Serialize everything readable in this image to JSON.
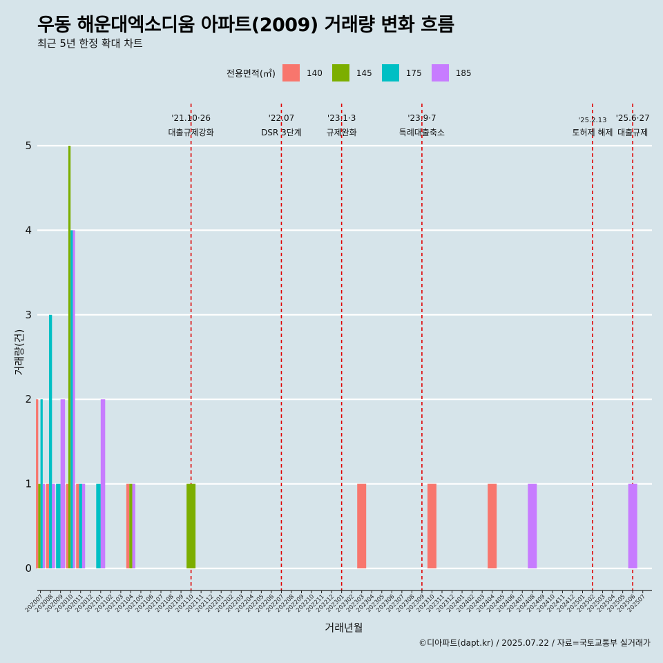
{
  "header": {
    "title": "우동 해운대엑소디움 아파트(2009) 거래량 변화 흐름",
    "subtitle": "최근 5년 한정 확대 차트"
  },
  "legend": {
    "title": "전용면적(㎡)",
    "items": [
      {
        "label": "140",
        "color": "#F8766D"
      },
      {
        "label": "145",
        "color": "#7CAE00"
      },
      {
        "label": "175",
        "color": "#00BFC4"
      },
      {
        "label": "185",
        "color": "#C77CFF"
      }
    ]
  },
  "caption": "©디아파트(dapt.kr) / 2025.07.22 / 자료=국토교통부 실거래가",
  "chart_data": {
    "type": "bar",
    "xlabel": "거래년월",
    "ylabel": "거래량(건)",
    "ylim": [
      0,
      5
    ],
    "y_ticks": [
      0,
      1,
      2,
      3,
      4,
      5
    ],
    "grid": "horizontal",
    "legend_position": "top",
    "categories": [
      "202007",
      "202008",
      "202009",
      "202010",
      "202011",
      "202012",
      "202101",
      "202102",
      "202103",
      "202104",
      "202105",
      "202106",
      "202107",
      "202108",
      "202109",
      "202110",
      "202111",
      "202112",
      "202201",
      "202202",
      "202203",
      "202204",
      "202205",
      "202206",
      "202207",
      "202208",
      "202209",
      "202210",
      "202211",
      "202212",
      "202301",
      "202302",
      "202303",
      "202304",
      "202305",
      "202306",
      "202307",
      "202308",
      "202309",
      "202310",
      "202311",
      "202312",
      "202401",
      "202402",
      "202403",
      "202404",
      "202405",
      "202406",
      "202407",
      "202408",
      "202409",
      "202410",
      "202411",
      "202412",
      "202501",
      "202502",
      "202503",
      "202504",
      "202505",
      "202506",
      "202507"
    ],
    "bars": [
      {
        "month": "202007",
        "values": {
          "140": 2,
          "145": 1,
          "175": 2,
          "185": 1
        }
      },
      {
        "month": "202008",
        "values": {
          "140": 1,
          "175": 3,
          "185": 1
        }
      },
      {
        "month": "202009",
        "values": {
          "175": 1,
          "185": 2
        }
      },
      {
        "month": "202010",
        "values": {
          "140": 1,
          "145": 5,
          "175": 4,
          "185": 4
        }
      },
      {
        "month": "202011",
        "values": {
          "140": 1,
          "175": 1,
          "185": 1
        }
      },
      {
        "month": "202101",
        "values": {
          "175": 1,
          "185": 2
        }
      },
      {
        "month": "202104",
        "values": {
          "140": 1,
          "145": 1,
          "185": 1
        }
      },
      {
        "month": "202110",
        "values": {
          "145": 1
        }
      },
      {
        "month": "202303",
        "values": {
          "140": 1
        }
      },
      {
        "month": "202310",
        "values": {
          "140": 1
        }
      },
      {
        "month": "202404",
        "values": {
          "140": 1
        }
      },
      {
        "month": "202408",
        "values": {
          "185": 1
        }
      },
      {
        "month": "202506",
        "values": {
          "185": 1
        }
      }
    ],
    "events": [
      {
        "month": "202110",
        "date": "'21.10·26",
        "label": "대출규제강화"
      },
      {
        "month": "202207",
        "date": "'22.07",
        "label": "DSR 3단계"
      },
      {
        "month": "202301",
        "date": "'23.1·3",
        "label": "규제완화"
      },
      {
        "month": "202309",
        "date": "'23.9·7",
        "label": "특례대출축소"
      },
      {
        "month": "202502",
        "date": "'25.2.13",
        "label": "토허제 해제"
      },
      {
        "month": "202506",
        "date": "'25.6·27",
        "label": "대출규제"
      }
    ]
  }
}
